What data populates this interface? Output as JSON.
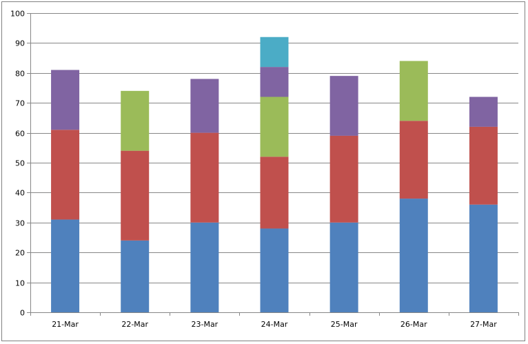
{
  "chart_data": {
    "type": "bar",
    "stacked": true,
    "categories": [
      "21-Mar",
      "22-Mar",
      "23-Mar",
      "24-Mar",
      "25-Mar",
      "26-Mar",
      "27-Mar"
    ],
    "series": [
      {
        "color": "#4f81bd",
        "values": [
          31,
          24,
          30,
          28,
          30,
          38,
          36
        ]
      },
      {
        "color": "#c0504d",
        "values": [
          30,
          30,
          30,
          24,
          29,
          26,
          26
        ]
      },
      {
        "color": "#9bbb59",
        "values": [
          0,
          20,
          0,
          20,
          0,
          20,
          0
        ]
      },
      {
        "color": "#8064a2",
        "values": [
          20,
          0,
          18,
          10,
          20,
          0,
          10
        ]
      },
      {
        "color": "#4bacc6",
        "values": [
          0,
          0,
          0,
          10,
          0,
          0,
          0
        ]
      }
    ],
    "ylim": [
      0,
      100
    ],
    "yticks": [
      0,
      10,
      20,
      30,
      40,
      50,
      60,
      70,
      80,
      90,
      100
    ],
    "grid": true,
    "legend": "none"
  }
}
